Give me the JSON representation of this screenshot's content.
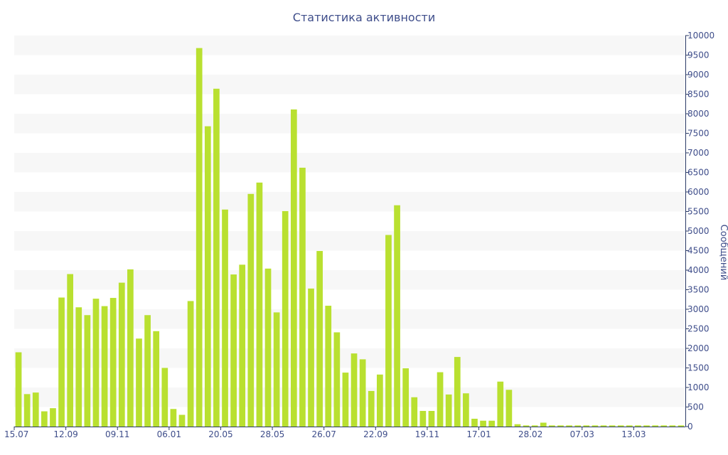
{
  "chart_data": {
    "type": "bar",
    "title": "Статистика активности",
    "xlabel": "",
    "ylabel": "Сообщений",
    "y_axis_side": "right",
    "ylim": [
      0,
      10000
    ],
    "y_ticks": [
      0,
      500,
      1000,
      1500,
      2000,
      2500,
      3000,
      3500,
      4000,
      4500,
      5000,
      5500,
      6000,
      6500,
      7000,
      7500,
      8000,
      8500,
      9000,
      9500,
      10000
    ],
    "x_tick_labels": [
      {
        "label": "15.07",
        "index": 0
      },
      {
        "label": "12.09",
        "index": 6
      },
      {
        "label": "09.11",
        "index": 12
      },
      {
        "label": "06.01",
        "index": 18
      },
      {
        "label": "20.05",
        "index": 24
      },
      {
        "label": "28.05",
        "index": 30
      },
      {
        "label": "26.07",
        "index": 36
      },
      {
        "label": "22.09",
        "index": 42
      },
      {
        "label": "19.11",
        "index": 48
      },
      {
        "label": "17.01",
        "index": 54
      },
      {
        "label": "28.02",
        "index": 60
      },
      {
        "label": "07.03",
        "index": 66
      },
      {
        "label": "13.03",
        "index": 72
      }
    ],
    "values": [
      1900,
      830,
      870,
      390,
      470,
      3300,
      3900,
      3050,
      2850,
      3270,
      3080,
      3290,
      3680,
      4020,
      2250,
      2850,
      2440,
      1500,
      450,
      300,
      3210,
      9680,
      7680,
      8640,
      5550,
      3890,
      4140,
      5950,
      6240,
      4040,
      2920,
      5510,
      8110,
      6620,
      3530,
      4490,
      3090,
      2410,
      1380,
      1870,
      1720,
      910,
      1330,
      4900,
      5660,
      1490,
      750,
      400,
      400,
      1390,
      820,
      1780,
      850,
      200,
      150,
      150,
      1150,
      940,
      60,
      30,
      30,
      100,
      30,
      30,
      30,
      30,
      30,
      30,
      30,
      30,
      30,
      30,
      30,
      30,
      30,
      30,
      30,
      30
    ],
    "grid": "alternating horizontal bands",
    "colors": {
      "bar": "#b9e030",
      "band": "#f7f7f7",
      "text": "#3e4d8a",
      "axis": "#2a3a66"
    }
  }
}
